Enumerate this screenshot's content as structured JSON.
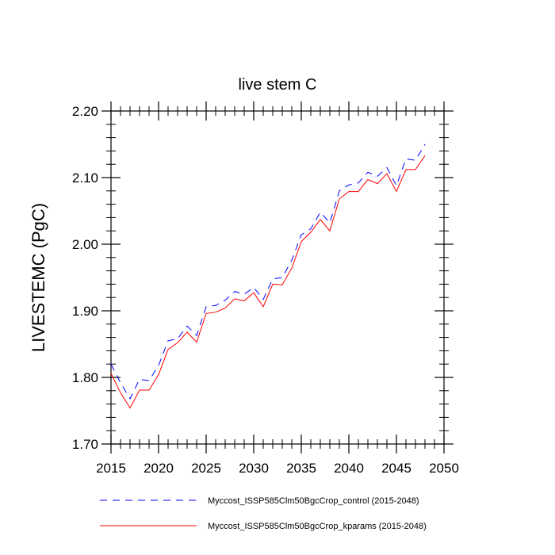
{
  "chart_data": {
    "type": "line",
    "title": "live stem C",
    "xlabel": "",
    "ylabel": "LIVESTEMC  (PgC)",
    "xlim": [
      2015,
      2050
    ],
    "ylim": [
      1.7,
      2.2
    ],
    "x_ticks": [
      "2015",
      "2020",
      "2025",
      "2030",
      "2035",
      "2040",
      "2045",
      "2050"
    ],
    "y_ticks": [
      "1.70",
      "1.80",
      "1.90",
      "2.00",
      "2.10",
      "2.20"
    ],
    "grid": false,
    "legend_position": "bottom",
    "x": [
      2015,
      2016,
      2017,
      2018,
      2019,
      2020,
      2021,
      2022,
      2023,
      2024,
      2025,
      2026,
      2027,
      2028,
      2029,
      2030,
      2031,
      2032,
      2033,
      2034,
      2035,
      2036,
      2037,
      2038,
      2039,
      2040,
      2041,
      2042,
      2043,
      2044,
      2045,
      2046,
      2047,
      2048
    ],
    "series": [
      {
        "name": "Myccost_ISSP585Clm50BgcCrop_control (2015-2048)",
        "color": "#0000ff",
        "dash": "dashed",
        "values": [
          1.82,
          1.792,
          1.768,
          1.797,
          1.795,
          1.818,
          1.855,
          1.858,
          1.877,
          1.863,
          1.906,
          1.908,
          1.916,
          1.929,
          1.925,
          1.935,
          1.917,
          1.948,
          1.95,
          1.976,
          2.014,
          2.023,
          2.048,
          2.032,
          2.08,
          2.089,
          2.092,
          2.108,
          2.102,
          2.115,
          2.088,
          2.128,
          2.126,
          2.15
        ]
      },
      {
        "name": "Myccost_ISSP585Clm50BgcCrop_kparams (2015-2048)",
        "color": "#ff0000",
        "dash": "solid",
        "values": [
          1.806,
          1.777,
          1.754,
          1.781,
          1.781,
          1.804,
          1.842,
          1.852,
          1.868,
          1.853,
          1.896,
          1.898,
          1.904,
          1.918,
          1.915,
          1.927,
          1.906,
          1.94,
          1.939,
          1.964,
          2.004,
          2.018,
          2.037,
          2.02,
          2.068,
          2.079,
          2.079,
          2.097,
          2.091,
          2.106,
          2.079,
          2.112,
          2.112,
          2.133
        ]
      }
    ]
  }
}
